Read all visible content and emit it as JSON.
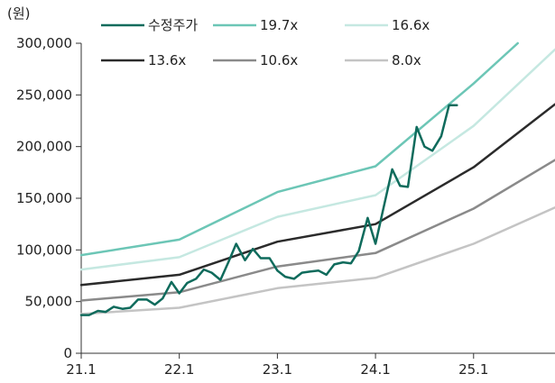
{
  "chart_data": {
    "type": "line",
    "ylabel": "(원)",
    "ylim": [
      0,
      300000
    ],
    "yticks": [
      0,
      50000,
      100000,
      150000,
      200000,
      250000,
      300000
    ],
    "ytick_labels": [
      "0",
      "50,000",
      "100,000",
      "150,000",
      "200,000",
      "250,000",
      "300,000"
    ],
    "xlim": [
      2021.0,
      2025.83
    ],
    "xticks": [
      2021.0,
      2022.0,
      2023.0,
      2024.0,
      2025.0
    ],
    "xtick_labels": [
      "21.1",
      "22.1",
      "23.1",
      "24.1",
      "25.1"
    ],
    "legend_position": "top",
    "series": [
      {
        "name": "수정주가",
        "color": "#0f6b5c",
        "width": 2.5,
        "x": [
          2021.0,
          2021.08,
          2021.17,
          2021.25,
          2021.33,
          2021.42,
          2021.5,
          2021.58,
          2021.67,
          2021.75,
          2021.83,
          2021.92,
          2022.0,
          2022.08,
          2022.17,
          2022.25,
          2022.33,
          2022.42,
          2022.5,
          2022.58,
          2022.67,
          2022.75,
          2022.83,
          2022.92,
          2023.0,
          2023.08,
          2023.17,
          2023.25,
          2023.33,
          2023.42,
          2023.5,
          2023.58,
          2023.67,
          2023.75,
          2023.83,
          2023.92,
          2024.0,
          2024.08,
          2024.17,
          2024.25,
          2024.33,
          2024.42,
          2024.5,
          2024.58,
          2024.67,
          2024.75,
          2024.83
        ],
        "values": [
          37000,
          37000,
          41000,
          40000,
          45000,
          43000,
          44000,
          52000,
          52000,
          47000,
          53000,
          69000,
          58000,
          68000,
          72000,
          81000,
          78000,
          71000,
          88000,
          106000,
          90000,
          101000,
          92000,
          92000,
          80000,
          74000,
          72000,
          78000,
          79000,
          80000,
          76000,
          86000,
          88000,
          87000,
          99000,
          131000,
          106000,
          140000,
          178000,
          162000,
          161000,
          219000,
          200000,
          196000,
          210000,
          240000,
          240000
        ]
      },
      {
        "name": "19.7x",
        "color": "#6cc6b6",
        "width": 2.5,
        "x": [
          2021.0,
          2022.0,
          2023.0,
          2024.0,
          2025.0,
          2025.45
        ],
        "values": [
          95000,
          110000,
          156000,
          181000,
          261000,
          300000
        ]
      },
      {
        "name": "16.6x",
        "color": "#c5e8e1",
        "width": 2.5,
        "x": [
          2021.0,
          2022.0,
          2023.0,
          2024.0,
          2025.0,
          2025.83
        ],
        "values": [
          81000,
          93000,
          132000,
          153000,
          220000,
          294000
        ]
      },
      {
        "name": "13.6x",
        "color": "#2b2b2b",
        "width": 2.5,
        "x": [
          2021.0,
          2022.0,
          2023.0,
          2024.0,
          2025.0,
          2025.83
        ],
        "values": [
          66000,
          76000,
          108000,
          125000,
          180000,
          241000
        ]
      },
      {
        "name": "10.6x",
        "color": "#8a8a8a",
        "width": 2.5,
        "x": [
          2021.0,
          2022.0,
          2023.0,
          2024.0,
          2025.0,
          2025.83
        ],
        "values": [
          51000,
          59000,
          84000,
          97000,
          140000,
          187000
        ]
      },
      {
        "name": "8.0x",
        "color": "#c4c4c4",
        "width": 2.5,
        "x": [
          2021.0,
          2022.0,
          2023.0,
          2024.0,
          2025.0,
          2025.83
        ],
        "values": [
          38000,
          44000,
          63000,
          73000,
          106000,
          141000
        ]
      }
    ]
  }
}
